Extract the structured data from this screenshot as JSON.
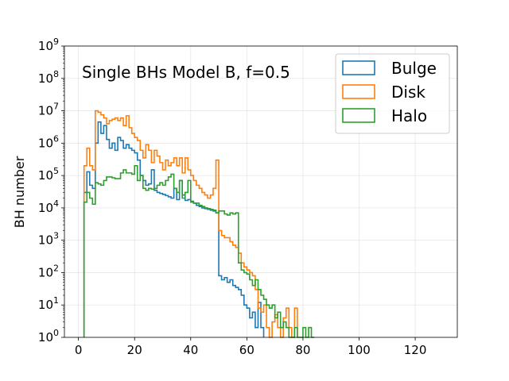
{
  "chart_data": {
    "type": "step-histogram",
    "title": "Single BHs Model B, f=0.5",
    "xlabel": "",
    "ylabel": "BH number",
    "xlim": [
      -5,
      135
    ],
    "ylim_log10": [
      0,
      9
    ],
    "yscale": "log",
    "grid": true,
    "legend_position": "top-right",
    "x_ticks": [
      0,
      20,
      40,
      60,
      80,
      100,
      120
    ],
    "x_tick_labels": [
      "0",
      "20",
      "40",
      "60",
      "80",
      "100",
      "120"
    ],
    "y_tick_exponents": [
      0,
      1,
      2,
      3,
      4,
      5,
      6,
      7,
      8,
      9
    ],
    "y_tick_base": "10",
    "bin_width": 1,
    "series": [
      {
        "name": "Bulge",
        "color": "#1f77b4",
        "bins": [
          [
            2,
            30000
          ],
          [
            3,
            130000
          ],
          [
            4,
            50000
          ],
          [
            5,
            40000
          ],
          [
            6,
            1000000
          ],
          [
            7,
            4500000
          ],
          [
            8,
            2000000
          ],
          [
            9,
            3500000
          ],
          [
            10,
            1300000
          ],
          [
            11,
            700000
          ],
          [
            12,
            1000000
          ],
          [
            13,
            600000
          ],
          [
            14,
            1500000
          ],
          [
            15,
            1200000
          ],
          [
            16,
            700000
          ],
          [
            17,
            900000
          ],
          [
            18,
            700000
          ],
          [
            19,
            600000
          ],
          [
            20,
            500000
          ],
          [
            21,
            300000
          ],
          [
            22,
            100000
          ],
          [
            23,
            70000
          ],
          [
            24,
            50000
          ],
          [
            25,
            55000
          ],
          [
            26,
            150000
          ],
          [
            27,
            35000
          ],
          [
            28,
            30000
          ],
          [
            29,
            28000
          ],
          [
            30,
            26000
          ],
          [
            31,
            24000
          ],
          [
            32,
            22000
          ],
          [
            33,
            20000
          ],
          [
            34,
            40000
          ],
          [
            35,
            18000
          ],
          [
            36,
            70000
          ],
          [
            37,
            25000
          ],
          [
            38,
            17000
          ],
          [
            39,
            18000
          ],
          [
            40,
            16000
          ],
          [
            41,
            14000
          ],
          [
            42,
            12000
          ],
          [
            43,
            11000
          ],
          [
            44,
            10000
          ],
          [
            45,
            9500
          ],
          [
            46,
            9000
          ],
          [
            47,
            8500
          ],
          [
            48,
            8000
          ],
          [
            49,
            7000
          ],
          [
            50,
            80
          ],
          [
            51,
            60
          ],
          [
            52,
            70
          ],
          [
            53,
            50
          ],
          [
            54,
            60
          ],
          [
            55,
            40
          ],
          [
            56,
            35
          ],
          [
            57,
            30
          ],
          [
            58,
            20
          ],
          [
            59,
            10
          ],
          [
            60,
            8
          ],
          [
            61,
            4
          ],
          [
            62,
            6
          ],
          [
            63,
            2
          ],
          [
            64,
            12
          ],
          [
            65,
            2
          ]
        ]
      },
      {
        "name": "Disk",
        "color": "#ff7f0e",
        "bins": [
          [
            2,
            200000
          ],
          [
            3,
            700000
          ],
          [
            4,
            200000
          ],
          [
            5,
            150000
          ],
          [
            6,
            10000000
          ],
          [
            7,
            9000000
          ],
          [
            8,
            7500000
          ],
          [
            9,
            6000000
          ],
          [
            10,
            4000000
          ],
          [
            11,
            5000000
          ],
          [
            12,
            5500000
          ],
          [
            13,
            6000000
          ],
          [
            14,
            5000000
          ],
          [
            15,
            6000000
          ],
          [
            16,
            3500000
          ],
          [
            17,
            7000000
          ],
          [
            18,
            3000000
          ],
          [
            19,
            2000000
          ],
          [
            20,
            1500000
          ],
          [
            21,
            1200000
          ],
          [
            22,
            600000
          ],
          [
            23,
            350000
          ],
          [
            24,
            900000
          ],
          [
            25,
            600000
          ],
          [
            26,
            250000
          ],
          [
            27,
            600000
          ],
          [
            28,
            400000
          ],
          [
            29,
            250000
          ],
          [
            30,
            150000
          ],
          [
            31,
            300000
          ],
          [
            32,
            200000
          ],
          [
            33,
            250000
          ],
          [
            34,
            350000
          ],
          [
            35,
            200000
          ],
          [
            36,
            350000
          ],
          [
            37,
            120000
          ],
          [
            38,
            350000
          ],
          [
            39,
            150000
          ],
          [
            40,
            100000
          ],
          [
            41,
            70000
          ],
          [
            42,
            50000
          ],
          [
            43,
            40000
          ],
          [
            44,
            30000
          ],
          [
            45,
            25000
          ],
          [
            46,
            20000
          ],
          [
            47,
            25000
          ],
          [
            48,
            40000
          ],
          [
            49,
            300000
          ],
          [
            50,
            2000
          ],
          [
            51,
            1400
          ],
          [
            52,
            1200
          ],
          [
            53,
            1200
          ],
          [
            54,
            900
          ],
          [
            55,
            700
          ],
          [
            56,
            600
          ],
          [
            57,
            400
          ],
          [
            58,
            200
          ],
          [
            59,
            150
          ],
          [
            60,
            120
          ],
          [
            61,
            100
          ],
          [
            62,
            80
          ],
          [
            63,
            30
          ],
          [
            64,
            8
          ],
          [
            65,
            6
          ],
          [
            66,
            10
          ],
          [
            67,
            2
          ],
          [
            68,
            1
          ],
          [
            69,
            3
          ],
          [
            70,
            5
          ],
          [
            71,
            2
          ],
          [
            72,
            1
          ],
          [
            73,
            4
          ],
          [
            74,
            8
          ],
          [
            75,
            2
          ],
          [
            76,
            1
          ],
          [
            77,
            8
          ]
        ]
      },
      {
        "name": "Halo",
        "color": "#2ca02c",
        "bins": [
          [
            2,
            15000
          ],
          [
            3,
            30000
          ],
          [
            4,
            20000
          ],
          [
            5,
            13000
          ],
          [
            6,
            60000
          ],
          [
            7,
            55000
          ],
          [
            8,
            50000
          ],
          [
            9,
            70000
          ],
          [
            10,
            90000
          ],
          [
            11,
            90000
          ],
          [
            12,
            85000
          ],
          [
            13,
            80000
          ],
          [
            14,
            80000
          ],
          [
            15,
            120000
          ],
          [
            16,
            150000
          ],
          [
            17,
            120000
          ],
          [
            18,
            120000
          ],
          [
            19,
            110000
          ],
          [
            20,
            200000
          ],
          [
            21,
            70000
          ],
          [
            22,
            100000
          ],
          [
            23,
            40000
          ],
          [
            24,
            35000
          ],
          [
            25,
            40000
          ],
          [
            26,
            38000
          ],
          [
            27,
            40000
          ],
          [
            28,
            50000
          ],
          [
            29,
            60000
          ],
          [
            30,
            50000
          ],
          [
            31,
            70000
          ],
          [
            32,
            90000
          ],
          [
            33,
            110000
          ],
          [
            34,
            40000
          ],
          [
            35,
            30000
          ],
          [
            36,
            70000
          ],
          [
            37,
            20000
          ],
          [
            38,
            30000
          ],
          [
            39,
            70000
          ],
          [
            40,
            15000
          ],
          [
            41,
            14000
          ],
          [
            42,
            14000
          ],
          [
            43,
            12000
          ],
          [
            44,
            11000
          ],
          [
            45,
            10000
          ],
          [
            46,
            9500
          ],
          [
            47,
            9000
          ],
          [
            48,
            8500
          ],
          [
            49,
            7000
          ],
          [
            50,
            8000
          ],
          [
            51,
            8000
          ],
          [
            52,
            6500
          ],
          [
            53,
            6000
          ],
          [
            54,
            7000
          ],
          [
            55,
            6500
          ],
          [
            56,
            7000
          ],
          [
            57,
            200
          ],
          [
            58,
            120
          ],
          [
            59,
            100
          ],
          [
            60,
            90
          ],
          [
            61,
            60
          ],
          [
            62,
            40
          ],
          [
            63,
            60
          ],
          [
            64,
            30
          ],
          [
            65,
            20
          ],
          [
            66,
            15
          ],
          [
            67,
            10
          ],
          [
            68,
            8
          ],
          [
            69,
            10
          ],
          [
            70,
            4
          ],
          [
            71,
            6
          ],
          [
            72,
            2
          ],
          [
            73,
            3
          ],
          [
            74,
            2
          ],
          [
            75,
            1
          ],
          [
            76,
            1
          ],
          [
            77,
            2
          ],
          [
            78,
            1
          ],
          [
            79,
            1
          ],
          [
            80,
            2
          ],
          [
            81,
            1
          ],
          [
            82,
            2
          ],
          [
            83,
            1
          ]
        ]
      }
    ]
  }
}
